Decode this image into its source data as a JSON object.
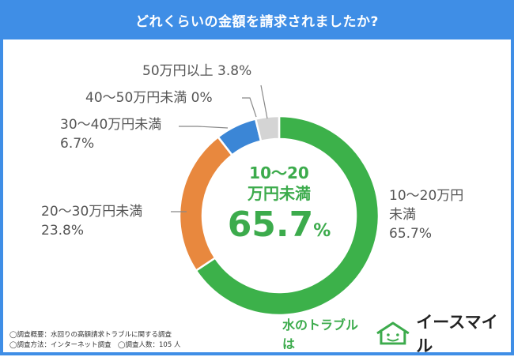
{
  "title": "どれくらいの金額を請求されましたか?",
  "chart_data": {
    "type": "pie",
    "categories": [
      "10～20万円未満",
      "20～30万円未満",
      "30～40万円未満",
      "40～50万円未満",
      "50万円以上"
    ],
    "values": [
      65.7,
      23.8,
      6.7,
      0,
      3.8
    ],
    "unit": "%",
    "colors": [
      "#3cb14a",
      "#e8883e",
      "#3b86d6",
      "#e2e2e2",
      "#d4d4d4"
    ],
    "center_label": {
      "line1": "10～20",
      "line2": "万円未満",
      "value": "65.7",
      "unit": "%"
    }
  },
  "labels": {
    "l0": {
      "line1": "10～20万円",
      "line2": "未満",
      "line3": "65.7%"
    },
    "l1": {
      "line1": "20～30万円未満",
      "line2": "23.8%"
    },
    "l2": {
      "line1": "30～40万円未満",
      "line2": "6.7%"
    },
    "l3": {
      "text": "40～50万円未満 0%"
    },
    "l4": {
      "text": "50万円以上 3.8%"
    }
  },
  "notes": [
    "◯調査概要：水回りの高額請求トラブルに関する調査",
    "◯調査方法：インターネット調査　◯調査人数：105 人"
  ],
  "brand": {
    "tagline": "水のトラブルは",
    "name": "イースマイル",
    "icon": "house-smile-icon"
  }
}
